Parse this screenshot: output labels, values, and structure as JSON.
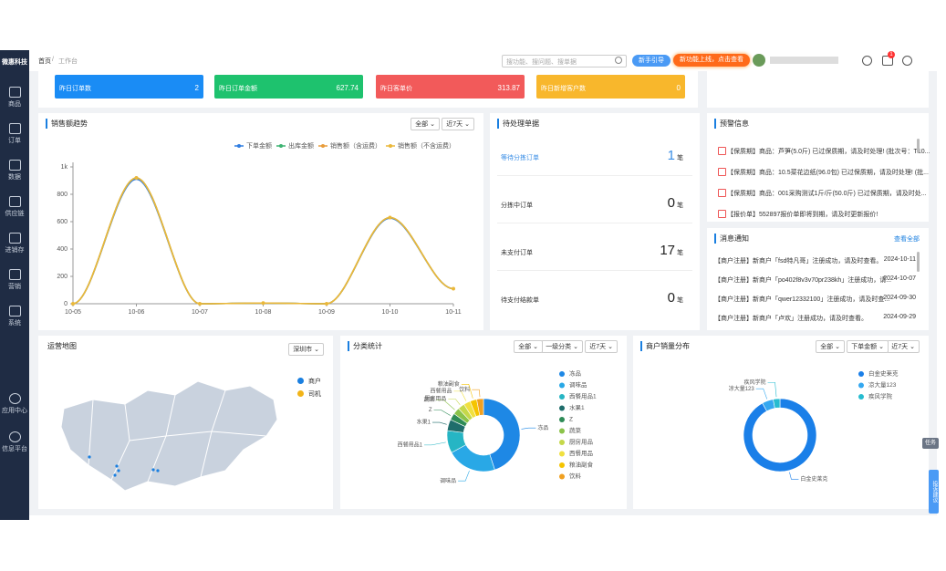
{
  "sidebar": {
    "logo": "微惠科技",
    "menu": [
      "商品",
      "订单",
      "数据",
      "供应链",
      "进销存",
      "营销",
      "系统"
    ],
    "bottom_menu": [
      "应用中心",
      "信息平台"
    ]
  },
  "topbar": {
    "breadcrumb": [
      "首页",
      "工作台"
    ],
    "search_placeholder": "搜功能、搜问题、搜单据",
    "guide_button": "新手引导",
    "new_feature_button": "新功能上线，点击查看",
    "badge": "1"
  },
  "stat_cards": [
    {
      "label": "昨日订单数",
      "value": 2,
      "color": "#1a8cf5"
    },
    {
      "label": "昨日订单金额",
      "value": 627.74,
      "color": "#1ec26e"
    },
    {
      "label": "昨日客单价",
      "value": 313.87,
      "color": "#f25a5a"
    },
    {
      "label": "昨日新增客户数",
      "value": 0,
      "color": "#f8b72c"
    }
  ],
  "pending": {
    "title": "待处理单据",
    "unit": "笔",
    "items": [
      {
        "label": "等待分拣订单",
        "count": 1
      },
      {
        "label": "分拣中订单",
        "count": 0
      },
      {
        "label": "未支付订单",
        "count": 17
      },
      {
        "label": "待支付结款单",
        "count": 0
      }
    ]
  },
  "alerts": {
    "title": "预警信息",
    "items": [
      "【保质期】商品：芦笋(5.0斤) 已过保质期，请及时处理! (批次号：T10...",
      "【保质期】商品：10.5菜花边纸(96.0包) 已过保质期，请及时处理! (批...",
      "【保质期】商品：001采购测试1斤/斤(50.0斤) 已过保质期，请及时处...",
      "【报价单】552897报价单即将到期，请及时更新报价!"
    ]
  },
  "messages": {
    "title": "消息通知",
    "view_all": "查看全部",
    "items": [
      {
        "text": "【商户注册】新商户「fsd特凡哥」注册成功，请及时查看。",
        "date": "2024-10-11"
      },
      {
        "text": "【商户注册】新商户「po402f8v3v70pr238kh」注册成功，请...",
        "date": "2024-10-07"
      },
      {
        "text": "【商户注册】新商户「qwer12332100」注册成功，请及时查...",
        "date": "2024-09-30"
      },
      {
        "text": "【商户注册】新商户「卢欢」注册成功，请及时查看。",
        "date": "2024-09-29"
      }
    ]
  },
  "map": {
    "title": "运营地图",
    "city": "深圳市",
    "legend": [
      {
        "name": "商户",
        "color": "#1a7fe0"
      },
      {
        "name": "司机",
        "color": "#f2b418"
      }
    ]
  },
  "side_tabs": [
    "任务",
    "投诉建议"
  ],
  "chart_data": [
    {
      "type": "line",
      "title": "销售额趋势",
      "filters": [
        "近7天",
        "全部"
      ],
      "x": [
        "10-05",
        "10-06",
        "10-07",
        "10-08",
        "10-09",
        "10-10",
        "10-11"
      ],
      "series": [
        {
          "name": "下单金额",
          "color": "#2f7de1",
          "values": [
            0,
            910,
            0,
            5,
            0,
            625,
            110
          ]
        },
        {
          "name": "出库金额",
          "color": "#3cb371",
          "values": [
            0,
            920,
            0,
            5,
            0,
            630,
            110
          ]
        },
        {
          "name": "销售额（含运费）",
          "color": "#e89c3a",
          "values": [
            0,
            920,
            0,
            5,
            0,
            630,
            110
          ]
        },
        {
          "name": "销售额（不含运费）",
          "color": "#eab83a",
          "values": [
            0,
            920,
            0,
            5,
            0,
            630,
            110
          ]
        }
      ],
      "ylim": [
        0,
        1000
      ],
      "yticks": [
        0,
        200,
        400,
        600,
        800,
        {
          "value": 1000,
          "label": "1k"
        }
      ]
    },
    {
      "type": "pie",
      "donut": true,
      "title": "分类统计",
      "filters": [
        "近7天",
        "一级分类",
        "全部"
      ],
      "categories": [
        "冻品",
        "调味品",
        "西餐用品1",
        "水果1",
        "Z",
        "蔬菜",
        "厨房用品",
        "西餐用品",
        "粮油副食",
        "饮料"
      ],
      "values": [
        45,
        22,
        10,
        5,
        3,
        3,
        3,
        3,
        3,
        3
      ],
      "colors": [
        "#1e88e5",
        "#29a8e6",
        "#26b5c4",
        "#1f6d6b",
        "#2e8b57",
        "#8bc34a",
        "#c5d84a",
        "#f0e040",
        "#f5c400",
        "#f0a020"
      ]
    },
    {
      "type": "pie",
      "donut": true,
      "title": "商户销量分布",
      "filters": [
        "近7天",
        "下单金额",
        "全部"
      ],
      "categories": [
        "白金史莱克",
        "凉大量123",
        "疾风学院"
      ],
      "values": [
        92,
        5,
        3
      ],
      "colors": [
        "#1a7fe8",
        "#35a8f0",
        "#26bcd0"
      ]
    }
  ]
}
